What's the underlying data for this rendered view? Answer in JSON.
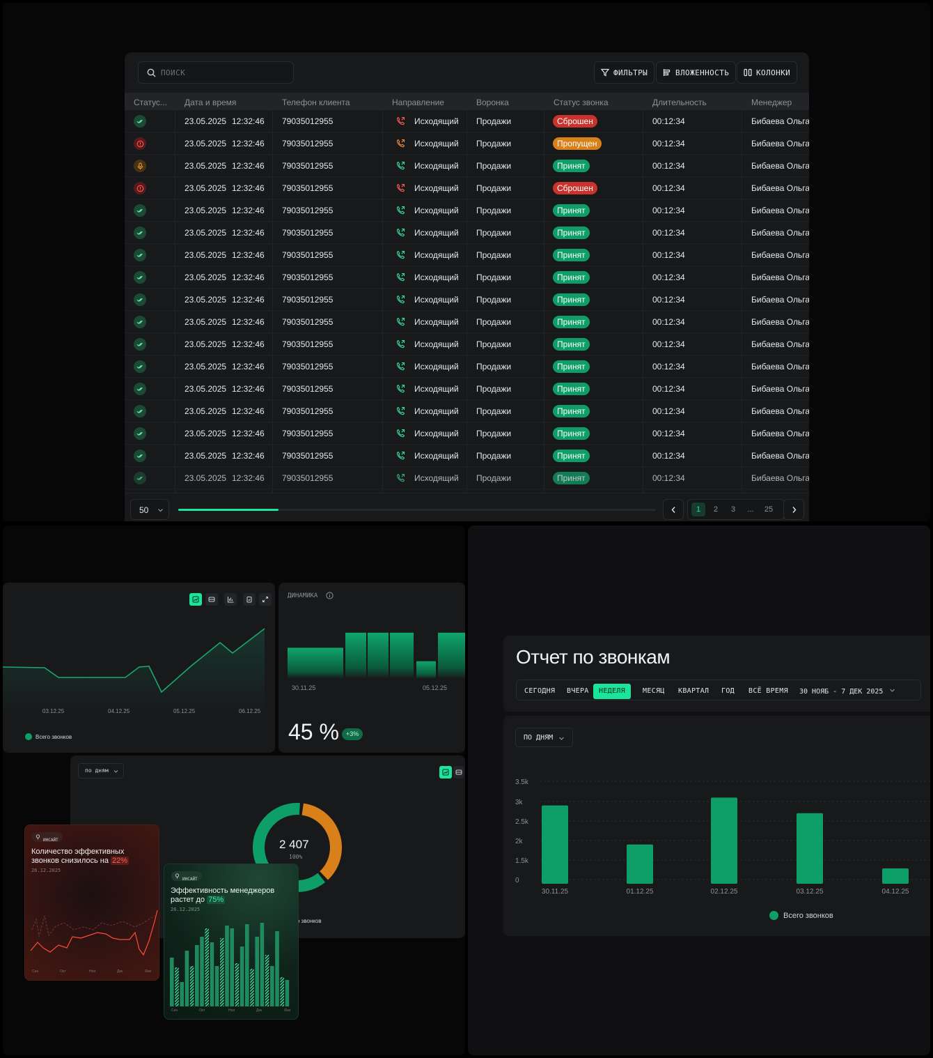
{
  "colors": {
    "accent": "#1ae59a",
    "green": "#0e9f69",
    "red": "#c8332e",
    "orange": "#d9801a",
    "bg": "#070707",
    "card": "#18191b"
  },
  "table": {
    "search_placeholder": "ПОИСК",
    "buttons": {
      "filters": "ФИЛЬТРЫ",
      "nesting": "ВЛОЖЕННОСТЬ",
      "columns": "КОЛОНКИ"
    },
    "columns": [
      "Статус...",
      "Дата и время",
      "Телефон клиента",
      "Направление",
      "Воронка",
      "Статус звонка",
      "Длительность",
      "Менеджер"
    ],
    "rows": [
      {
        "status": "ok",
        "date": "23.05.2025",
        "time": "12:32:46",
        "phone": "79035012955",
        "direction": "Исходящий",
        "dir_icon": "phone-outgoing-red-icon",
        "funnel": "Продажи",
        "call_status": "Сброшен",
        "call_status_color": "#c8332e",
        "duration": "00:12:34",
        "manager": "Бибаева Ольга"
      },
      {
        "status": "error",
        "date": "23.05.2025",
        "time": "12:32:46",
        "phone": "79035012955",
        "direction": "Исходящий",
        "dir_icon": "phone-outgoing-orange-icon",
        "funnel": "Продажи",
        "call_status": "Пропущен",
        "call_status_color": "#d9801a",
        "duration": "00:12:34",
        "manager": "Бибаева Ольга"
      },
      {
        "status": "recording",
        "date": "23.05.2025",
        "time": "12:32:46",
        "phone": "79035012955",
        "direction": "Исходящий",
        "dir_icon": "phone-outgoing-green-icon",
        "funnel": "Продажи",
        "call_status": "Принят",
        "call_status_color": "#0e9f69",
        "duration": "00:12:34",
        "manager": "Бибаева Ольга"
      },
      {
        "status": "error",
        "date": "23.05.2025",
        "time": "12:32:46",
        "phone": "79035012955",
        "direction": "Исходящий",
        "dir_icon": "phone-outgoing-red-icon",
        "funnel": "Продажи",
        "call_status": "Сброшен",
        "call_status_color": "#c8332e",
        "duration": "00:12:34",
        "manager": "Бибаева Ольга"
      },
      {
        "status": "ok",
        "date": "23.05.2025",
        "time": "12:32:46",
        "phone": "79035012955",
        "direction": "Исходящий",
        "dir_icon": "phone-outgoing-green-icon",
        "funnel": "Продажи",
        "call_status": "Принят",
        "call_status_color": "#0e9f69",
        "duration": "00:12:34",
        "manager": "Бибаева Ольга"
      },
      {
        "status": "ok",
        "date": "23.05.2025",
        "time": "12:32:46",
        "phone": "79035012955",
        "direction": "Исходящий",
        "dir_icon": "phone-outgoing-green-icon",
        "funnel": "Продажи",
        "call_status": "Принят",
        "call_status_color": "#0e9f69",
        "duration": "00:12:34",
        "manager": "Бибаева Ольга"
      },
      {
        "status": "ok",
        "date": "23.05.2025",
        "time": "12:32:46",
        "phone": "79035012955",
        "direction": "Исходящий",
        "dir_icon": "phone-outgoing-green-icon",
        "funnel": "Продажи",
        "call_status": "Принят",
        "call_status_color": "#0e9f69",
        "duration": "00:12:34",
        "manager": "Бибаева Ольга"
      },
      {
        "status": "ok",
        "date": "23.05.2025",
        "time": "12:32:46",
        "phone": "79035012955",
        "direction": "Исходящий",
        "dir_icon": "phone-outgoing-green-icon",
        "funnel": "Продажи",
        "call_status": "Принят",
        "call_status_color": "#0e9f69",
        "duration": "00:12:34",
        "manager": "Бибаева Ольга"
      },
      {
        "status": "ok",
        "date": "23.05.2025",
        "time": "12:32:46",
        "phone": "79035012955",
        "direction": "Исходящий",
        "dir_icon": "phone-outgoing-green-icon",
        "funnel": "Продажи",
        "call_status": "Принят",
        "call_status_color": "#0e9f69",
        "duration": "00:12:34",
        "manager": "Бибаева Ольга"
      },
      {
        "status": "ok",
        "date": "23.05.2025",
        "time": "12:32:46",
        "phone": "79035012955",
        "direction": "Исходящий",
        "dir_icon": "phone-outgoing-green-icon",
        "funnel": "Продажи",
        "call_status": "Принят",
        "call_status_color": "#0e9f69",
        "duration": "00:12:34",
        "manager": "Бибаева Ольга"
      },
      {
        "status": "ok",
        "date": "23.05.2025",
        "time": "12:32:46",
        "phone": "79035012955",
        "direction": "Исходящий",
        "dir_icon": "phone-outgoing-green-icon",
        "funnel": "Продажи",
        "call_status": "Принят",
        "call_status_color": "#0e9f69",
        "duration": "00:12:34",
        "manager": "Бибаева Ольга"
      },
      {
        "status": "ok",
        "date": "23.05.2025",
        "time": "12:32:46",
        "phone": "79035012955",
        "direction": "Исходящий",
        "dir_icon": "phone-outgoing-green-icon",
        "funnel": "Продажи",
        "call_status": "Принят",
        "call_status_color": "#0e9f69",
        "duration": "00:12:34",
        "manager": "Бибаева Ольга"
      },
      {
        "status": "ok",
        "date": "23.05.2025",
        "time": "12:32:46",
        "phone": "79035012955",
        "direction": "Исходящий",
        "dir_icon": "phone-outgoing-green-icon",
        "funnel": "Продажи",
        "call_status": "Принят",
        "call_status_color": "#0e9f69",
        "duration": "00:12:34",
        "manager": "Бибаева Ольга"
      },
      {
        "status": "ok",
        "date": "23.05.2025",
        "time": "12:32:46",
        "phone": "79035012955",
        "direction": "Исходящий",
        "dir_icon": "phone-outgoing-green-icon",
        "funnel": "Продажи",
        "call_status": "Принят",
        "call_status_color": "#0e9f69",
        "duration": "00:12:34",
        "manager": "Бибаева Ольга"
      },
      {
        "status": "ok",
        "date": "23.05.2025",
        "time": "12:32:46",
        "phone": "79035012955",
        "direction": "Исходящий",
        "dir_icon": "phone-outgoing-green-icon",
        "funnel": "Продажи",
        "call_status": "Принят",
        "call_status_color": "#0e9f69",
        "duration": "00:12:34",
        "manager": "Бибаева Ольга"
      },
      {
        "status": "ok",
        "date": "23.05.2025",
        "time": "12:32:46",
        "phone": "79035012955",
        "direction": "Исходящий",
        "dir_icon": "phone-outgoing-green-icon",
        "funnel": "Продажи",
        "call_status": "Принят",
        "call_status_color": "#0e9f69",
        "duration": "00:12:34",
        "manager": "Бибаева Ольга"
      },
      {
        "status": "ok",
        "date": "23.05.2025",
        "time": "12:32:46",
        "phone": "79035012955",
        "direction": "Исходящий",
        "dir_icon": "phone-outgoing-green-icon",
        "funnel": "Продажи",
        "call_status": "Принят",
        "call_status_color": "#0e9f69",
        "duration": "00:12:34",
        "manager": "Бибаева Ольга"
      }
    ],
    "pagination": {
      "per_page": "50",
      "scroll_progress": 0.21,
      "pages": [
        "1",
        "2",
        "3",
        "...",
        "25"
      ],
      "current": "1"
    }
  },
  "line_card": {
    "legend": "Всего звонков",
    "x_labels": [
      "03.12.25",
      "04.12.25",
      "05.12.25",
      "06.12.25"
    ],
    "toolbar_icons": [
      "line-chart-icon",
      "table-icon",
      "bar-chart-icon",
      "clipboard-icon",
      "expand-icon"
    ]
  },
  "dynamics": {
    "title": "ДИНАМИКА",
    "value": "45 %",
    "delta": "+3%",
    "x_labels": [
      "30.11.25",
      "05.12.25"
    ],
    "bars": [
      0.62,
      0.92,
      0.92,
      0.92,
      0.35,
      0.92
    ]
  },
  "donut": {
    "group_label": "по дням",
    "total": "2 407",
    "percent": "100%",
    "legend": "о звонков",
    "segments": [
      {
        "name": "green",
        "value": 0.63,
        "color": "#0e9f69"
      },
      {
        "name": "orange",
        "value": 0.37,
        "color": "#d9801a"
      }
    ]
  },
  "insight_red": {
    "tag": "ИНСАЙТ",
    "title_line1": "Количество эффективных",
    "title_line2": "звонков снизилось на",
    "highlight": "22%",
    "date": "26.12.2025",
    "x_labels": [
      "Сен",
      "Окт",
      "Ноя",
      "Дек",
      "Янв"
    ]
  },
  "insight_green": {
    "tag": "ИНСАЙТ",
    "title_line1": "Эффективность менеджеров",
    "title_line2": "растет до",
    "highlight": "75%",
    "date": "26.12.2025",
    "x_labels": [
      "Сен",
      "Окт",
      "Ноя",
      "Дек",
      "Янв"
    ]
  },
  "report": {
    "title": "Отчет по звонкам",
    "tabs": [
      "СЕГОДНЯ",
      "ВЧЕРА",
      "НЕДЕЛЯ",
      "МЕСЯЦ",
      "КВАРТАЛ",
      "ГОД",
      "ВСЁ ВРЕМЯ"
    ],
    "active_tab": "НЕДЕЛЯ",
    "date_range": "30 НОЯБ - 7 ДЕК 2025",
    "group_label": "ПО ДНЯМ"
  },
  "chart_data": {
    "type": "bar",
    "categories": [
      "30.11.25",
      "01.12.25",
      "02.12.25",
      "03.12.25",
      "04.12.25"
    ],
    "series": [
      {
        "name": "Всего звонков",
        "values": [
          2900,
          1900,
          3100,
          2700,
          500
        ]
      }
    ],
    "y_ticks": [
      "0",
      "1.5k",
      "2k",
      "2.5k",
      "3k",
      "3.5k"
    ],
    "legend": "Всего звонков"
  }
}
